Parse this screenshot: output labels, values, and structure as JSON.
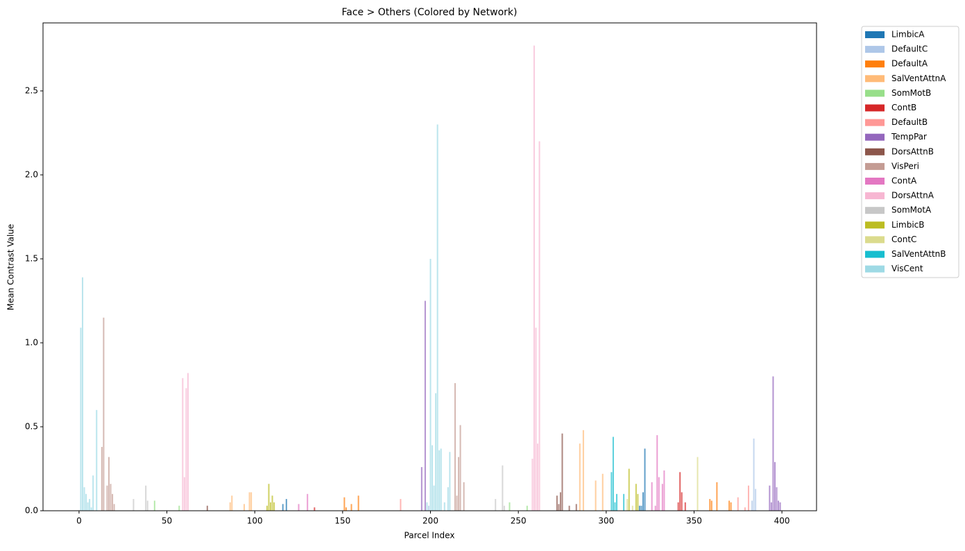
{
  "chart_data": {
    "type": "bar",
    "title": "Face > Others (Colored by Network)",
    "x_label": "Parcel Index",
    "y_label": "Mean Contrast Value",
    "xlim": [
      -20.5,
      419.7
    ],
    "ylim": [
      0,
      2.905
    ],
    "xticks": [
      0,
      50,
      100,
      150,
      200,
      250,
      300,
      350,
      400
    ],
    "yticks": [
      {
        "value": 0,
        "label": "0.0"
      },
      0.5,
      {
        "value": 1,
        "label": "1.0"
      },
      1.5,
      {
        "value": 2,
        "label": "2.0"
      },
      2.5
    ],
    "series": [
      {
        "name": "LimbicA",
        "color": "#1f77b4",
        "x": [
          116,
          118,
          319,
          320,
          321,
          322
        ],
        "values": [
          0.04,
          0.07,
          0.03,
          0.03,
          0.11,
          0.37
        ]
      },
      {
        "name": "DefaultC",
        "color": "#aec7e8",
        "x": [
          199,
          383,
          384,
          385
        ],
        "values": [
          0.03,
          0.06,
          0.43,
          0.13
        ]
      },
      {
        "name": "DefaultA",
        "color": "#ff7f0e",
        "x": [
          151,
          152,
          155,
          159,
          359,
          360,
          363,
          370,
          371
        ],
        "values": [
          0.08,
          0.02,
          0.04,
          0.09,
          0.07,
          0.06,
          0.17,
          0.06,
          0.05
        ]
      },
      {
        "name": "SalVentAttnA",
        "color": "#ffbb78",
        "x": [
          86,
          87,
          94,
          97,
          98,
          285,
          287,
          294,
          298
        ],
        "values": [
          0.05,
          0.09,
          0.04,
          0.11,
          0.11,
          0.4,
          0.48,
          0.18,
          0.22
        ]
      },
      {
        "name": "SomMotB",
        "color": "#98df8a",
        "x": [
          43,
          57,
          245,
          255
        ],
        "values": [
          0.06,
          0.03,
          0.05,
          0.03
        ]
      },
      {
        "name": "ContB",
        "color": "#d62728",
        "x": [
          134,
          341,
          342,
          343,
          345
        ],
        "values": [
          0.02,
          0.05,
          0.23,
          0.11,
          0.05
        ]
      },
      {
        "name": "DefaultB",
        "color": "#ff9896",
        "x": [
          183,
          375,
          379,
          381
        ],
        "values": [
          0.07,
          0.08,
          0.02,
          0.15
        ]
      },
      {
        "name": "TempPar",
        "color": "#9467bd",
        "x": [
          195,
          197,
          393,
          394,
          395,
          396,
          397,
          398,
          399
        ],
        "values": [
          0.26,
          1.25,
          0.15,
          0.05,
          0.8,
          0.29,
          0.14,
          0.06,
          0.05
        ]
      },
      {
        "name": "DorsAttnB",
        "color": "#8c564b",
        "x": [
          73,
          272,
          273,
          274,
          275,
          279,
          283
        ],
        "values": [
          0.03,
          0.09,
          0.04,
          0.11,
          0.46,
          0.03,
          0.04
        ]
      },
      {
        "name": "VisPeri",
        "color": "#c49c94",
        "x": [
          13,
          14,
          16,
          17,
          18,
          19,
          20,
          214,
          215,
          216,
          217,
          219
        ],
        "values": [
          0.38,
          1.15,
          0.15,
          0.32,
          0.16,
          0.1,
          0.04,
          0.76,
          0.09,
          0.32,
          0.51,
          0.17
        ]
      },
      {
        "name": "ContA",
        "color": "#e377c2",
        "x": [
          125,
          130,
          326,
          328,
          329,
          330,
          332,
          333
        ],
        "values": [
          0.04,
          0.1,
          0.17,
          0.03,
          0.45,
          0.2,
          0.16,
          0.24
        ]
      },
      {
        "name": "DorsAttnA",
        "color": "#f7b6d2",
        "x": [
          59,
          60,
          61,
          62,
          258,
          259,
          260,
          261,
          262
        ],
        "values": [
          0.79,
          0.2,
          0.73,
          0.82,
          0.31,
          2.77,
          1.09,
          0.4,
          2.2
        ]
      },
      {
        "name": "SomMotA",
        "color": "#c7c7c7",
        "x": [
          31,
          38,
          39,
          237,
          241,
          242
        ],
        "values": [
          0.07,
          0.15,
          0.06,
          0.07,
          0.27,
          0.03
        ]
      },
      {
        "name": "LimbicB",
        "color": "#bcbd22",
        "x": [
          107,
          108,
          109,
          110,
          111,
          313,
          317,
          318
        ],
        "values": [
          0.03,
          0.16,
          0.05,
          0.09,
          0.05,
          0.25,
          0.16,
          0.1
        ]
      },
      {
        "name": "ContC",
        "color": "#dbdb8d",
        "x": [
          312,
          315,
          352
        ],
        "values": [
          0.07,
          0.03,
          0.32
        ]
      },
      {
        "name": "SalVentAttnB",
        "color": "#17becf",
        "x": [
          303,
          304,
          305,
          306,
          310
        ],
        "values": [
          0.23,
          0.44,
          0.05,
          0.1,
          0.1
        ]
      },
      {
        "name": "VisCent",
        "color": "#9edae5",
        "x": [
          1,
          2,
          3,
          4,
          5,
          6,
          7,
          8,
          10,
          198,
          200,
          201,
          202,
          203,
          204,
          205,
          206,
          208,
          210,
          211
        ],
        "values": [
          1.09,
          1.39,
          0.14,
          0.1,
          0.05,
          0.07,
          0.02,
          0.21,
          0.6,
          0.05,
          1.5,
          0.39,
          0.15,
          0.7,
          2.3,
          0.36,
          0.37,
          0.05,
          0.14,
          0.35
        ]
      }
    ]
  }
}
